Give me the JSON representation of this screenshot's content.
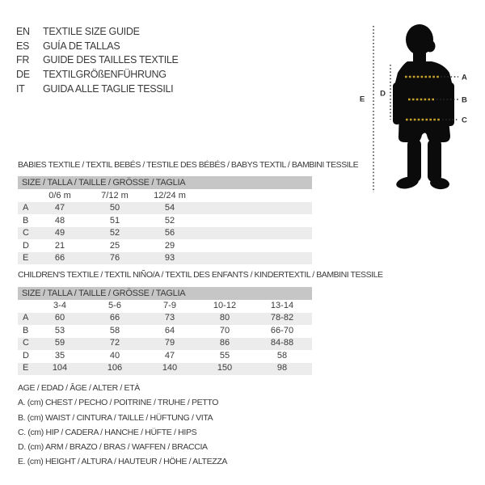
{
  "colors": {
    "text": "#3a3a3a",
    "size_bar_gray": "#c6c6c6",
    "row_stripe_gray": "#ececec",
    "silhouette_black": "#0b0b0b",
    "accent_yellow": "#c7a32b"
  },
  "languages": [
    {
      "code": "EN",
      "label": "TEXTILE SIZE GUIDE"
    },
    {
      "code": "ES",
      "label": "GUÍA DE TALLAS"
    },
    {
      "code": "FR",
      "label": "GUIDE DES TAILLES TEXTILE"
    },
    {
      "code": "DE",
      "label": "TEXTILGRÖßENFÜHRUNG"
    },
    {
      "code": "IT",
      "label": "GUIDA ALLE TAGLIE TESSILI"
    }
  ],
  "figure": {
    "measure_labels": [
      "A",
      "B",
      "C",
      "D",
      "E"
    ]
  },
  "babies": {
    "title": "BABIES TEXTILE / TEXTIL BEBÉS / TESTILE DES BÉBÉS / BABYS TEXTIL / BAMBINI TESSILE",
    "size_header": "SIZE / TALLA / TAILLE / GRÖSSE / TAGLIA",
    "columns": [
      "0/6 m",
      "7/12 m",
      "12/24 m"
    ],
    "rows": [
      {
        "label": "A",
        "values": [
          "47",
          "50",
          "54"
        ]
      },
      {
        "label": "B",
        "values": [
          "48",
          "51",
          "52"
        ]
      },
      {
        "label": "C",
        "values": [
          "49",
          "52",
          "56"
        ]
      },
      {
        "label": "D",
        "values": [
          "21",
          "25",
          "29"
        ]
      },
      {
        "label": "E",
        "values": [
          "66",
          "76",
          "93"
        ]
      }
    ]
  },
  "children": {
    "title": "CHILDREN'S TEXTILE / TEXTIL NIÑO/A / TEXTIL DES ENFANTS / KINDERTEXTIL / BAMBINI TESSILE",
    "size_header": "SIZE / TALLA / TAILLE / GRÖSSE / TAGLIA",
    "columns": [
      "3-4",
      "5-6",
      "7-9",
      "10-12",
      "13-14"
    ],
    "rows": [
      {
        "label": "A",
        "values": [
          "60",
          "66",
          "73",
          "80",
          "78-82"
        ]
      },
      {
        "label": "B",
        "values": [
          "53",
          "58",
          "64",
          "70",
          "66-70"
        ]
      },
      {
        "label": "C",
        "values": [
          "59",
          "72",
          "79",
          "86",
          "84-88"
        ]
      },
      {
        "label": "D",
        "values": [
          "35",
          "40",
          "47",
          "55",
          "58"
        ]
      },
      {
        "label": "E",
        "values": [
          "104",
          "106",
          "140",
          "150",
          "98"
        ]
      }
    ]
  },
  "legend": {
    "lines": [
      "AGE / EDAD / ÂGE / ALTER / ETÀ",
      "A. (cm) CHEST / PECHO / POITRINE / TRUHE / PETTO",
      "B. (cm) WAIST / CINTURA / TAILLE / HÜFTUNG / VITA",
      "C. (cm) HIP / CADERA / HANCHE / HÜFTE / HIPS",
      "D. (cm) ARM / BRAZO / BRAS / WAFFEN / BRACCIA",
      "E. (cm) HEIGHT / ALTURA / HAUTEUR / HÖHE / ALTEZZA"
    ]
  }
}
